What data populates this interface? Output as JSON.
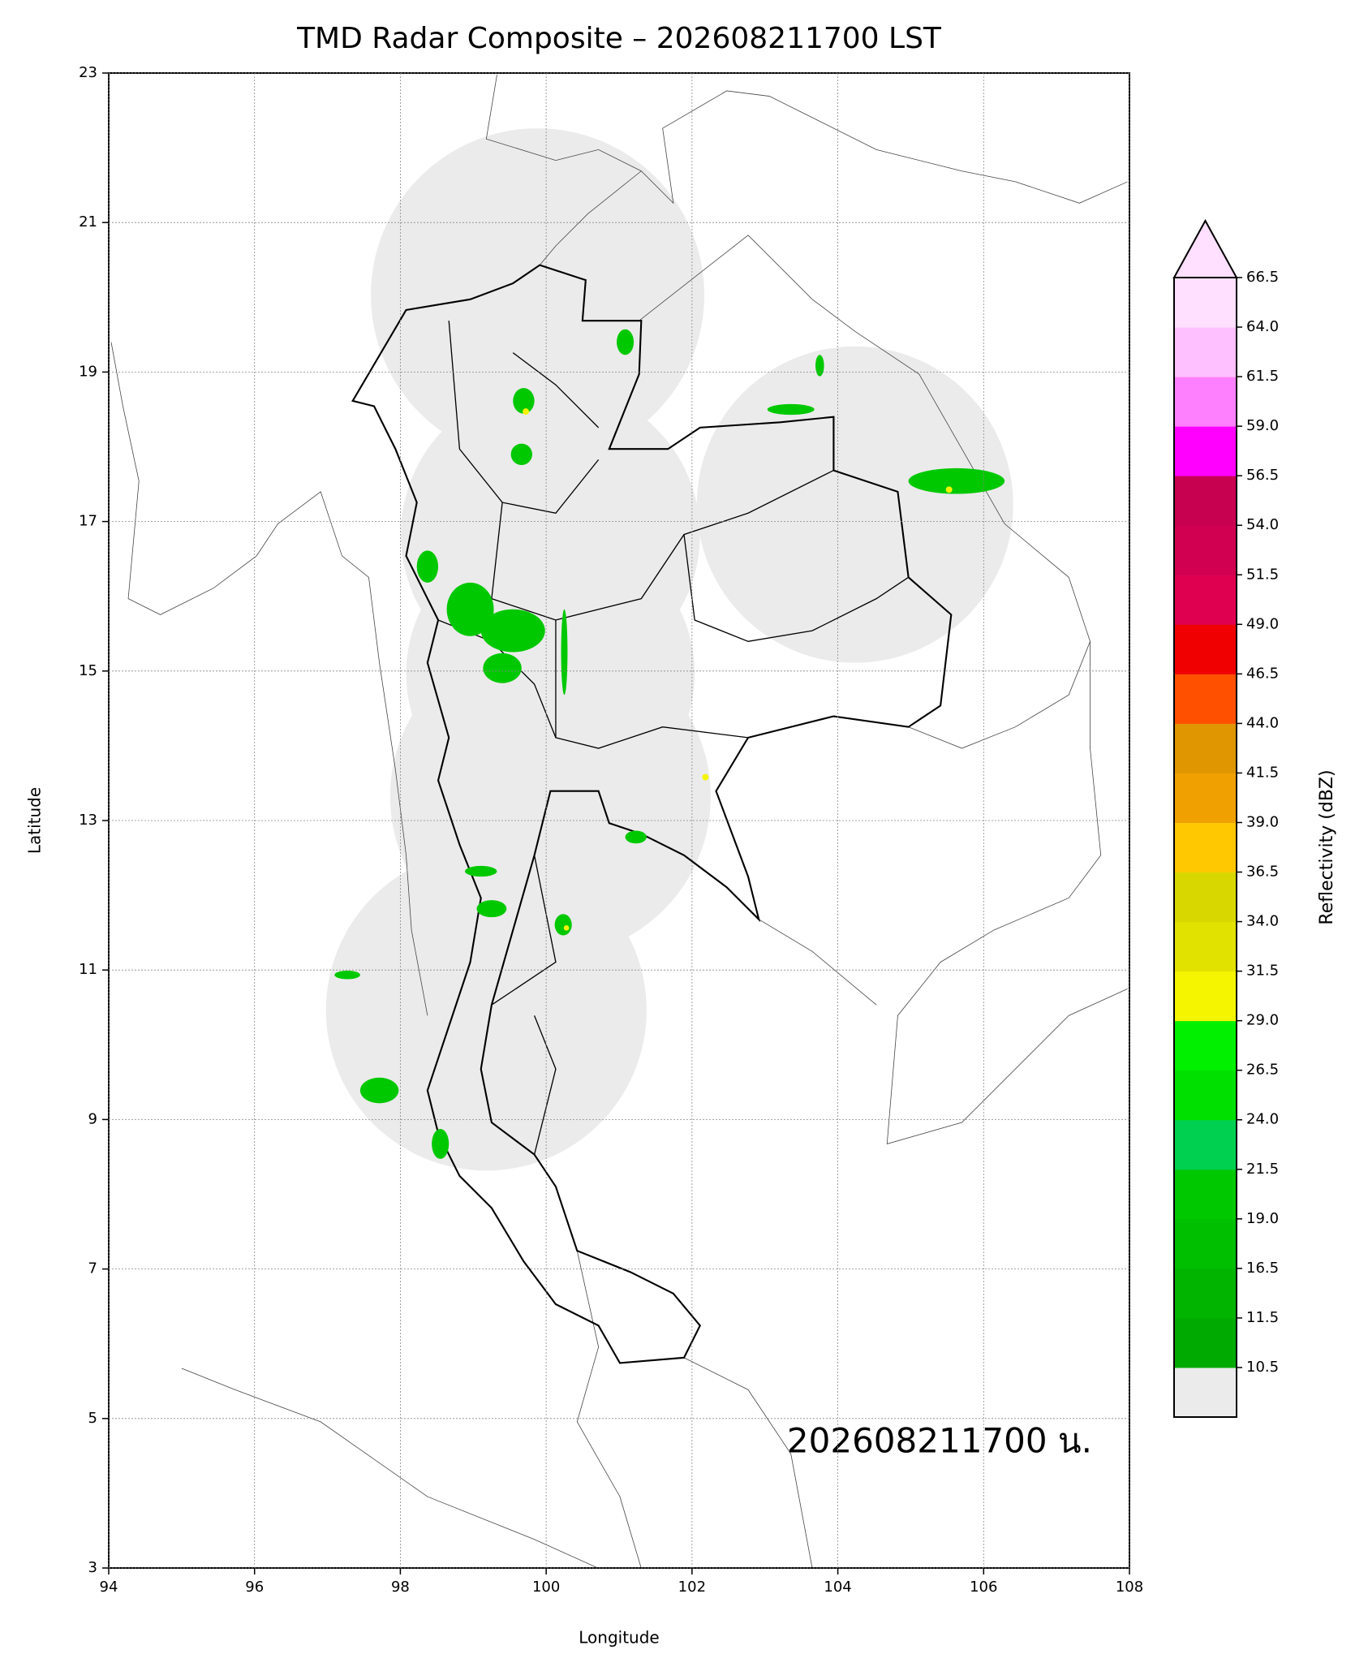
{
  "chart_data": {
    "type": "map",
    "title": "TMD Radar Composite – 202608211700 LST",
    "xlabel": "Longitude",
    "ylabel": "Latitude",
    "xlim": [
      94,
      108
    ],
    "ylim": [
      3,
      23
    ],
    "xticks": [
      94,
      96,
      98,
      100,
      102,
      104,
      106,
      108
    ],
    "yticks": [
      3,
      5,
      7,
      9,
      11,
      13,
      15,
      17,
      19,
      21,
      23
    ],
    "grid": true,
    "annotation": "202608211700 น.",
    "colorbar": {
      "label": "Reflectivity (dBZ)",
      "ticks": [
        10.5,
        11.5,
        16.5,
        {
          "value": 19,
          "label": "19.0"
        },
        21.5,
        {
          "value": 24,
          "label": "24.0"
        },
        26.5,
        {
          "value": 29,
          "label": "29.0"
        },
        31.5,
        {
          "value": 34,
          "label": "34.0"
        },
        36.5,
        {
          "value": 39,
          "label": "39.0"
        },
        41.5,
        {
          "value": 44,
          "label": "44.0"
        },
        46.5,
        {
          "value": 49,
          "label": "49.0"
        },
        51.5,
        {
          "value": 54,
          "label": "54.0"
        },
        56.5,
        {
          "value": 59,
          "label": "59.0"
        },
        61.5,
        {
          "value": 64,
          "label": "64.0"
        },
        66.5
      ],
      "colors": [
        "#00aa00",
        "#00b400",
        "#00be00",
        "#00c800",
        "#00d050",
        "#00e000",
        "#00f000",
        "#f5f500",
        "#e2e200",
        "#d8d800",
        "#ffc800",
        "#f0a000",
        "#e09600",
        "#ff5000",
        "#f00000",
        "#e00050",
        "#d20050",
        "#c80050",
        "#ff00ff",
        "#ff80ff",
        "#ffc0ff",
        "#ffe0ff"
      ],
      "under_color": "#ebebeb",
      "over_color": "#ffe0ff"
    }
  }
}
